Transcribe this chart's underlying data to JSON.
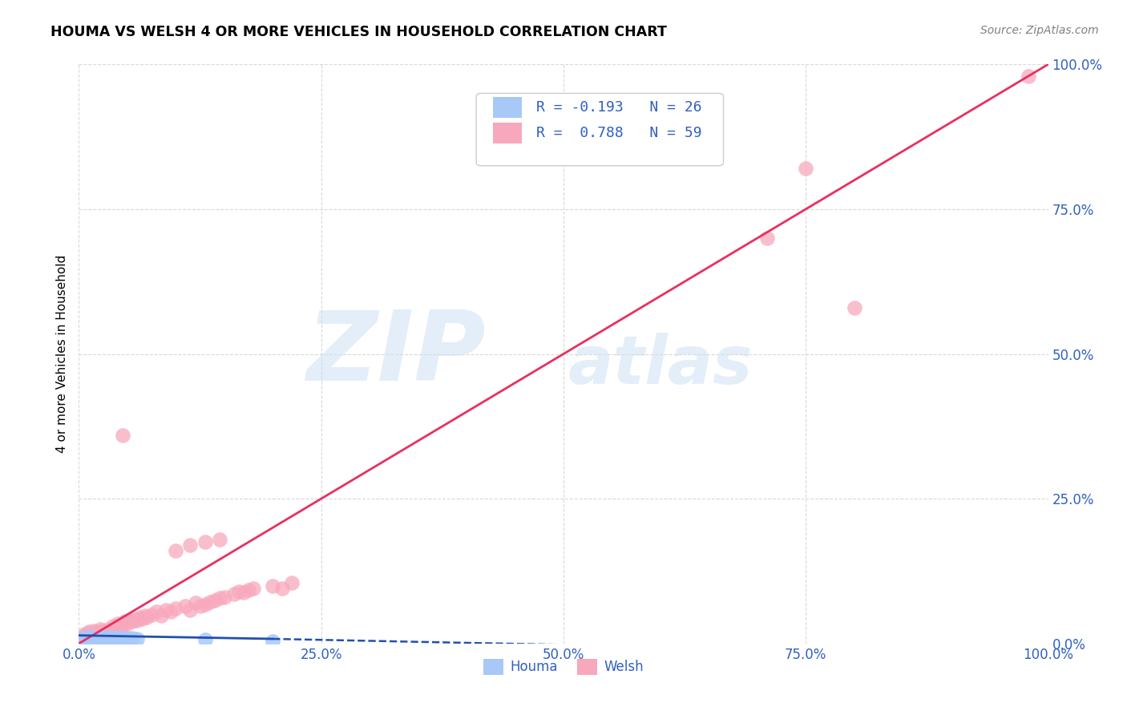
{
  "title": "HOUMA VS WELSH 4 OR MORE VEHICLES IN HOUSEHOLD CORRELATION CHART",
  "source": "Source: ZipAtlas.com",
  "ylabel": "4 or more Vehicles in Household",
  "watermark_zip": "ZIP",
  "watermark_atlas": "atlas",
  "xlim": [
    0.0,
    1.0
  ],
  "ylim": [
    0.0,
    1.0
  ],
  "x_ticks": [
    0.0,
    0.25,
    0.5,
    0.75,
    1.0
  ],
  "y_ticks": [
    0.0,
    0.25,
    0.5,
    0.75,
    1.0
  ],
  "x_tick_labels": [
    "0.0%",
    "25.0%",
    "50.0%",
    "75.0%",
    "100.0%"
  ],
  "y_tick_labels": [
    "0.0%",
    "25.0%",
    "50.0%",
    "75.0%",
    "100.0%"
  ],
  "houma_color": "#a8c8f8",
  "welsh_color": "#f8a8bc",
  "houma_line_color": "#2050b0",
  "welsh_line_color": "#e83060",
  "houma_R": -0.193,
  "houma_N": 26,
  "welsh_R": 0.788,
  "welsh_N": 59,
  "legend_label_houma": "Houma",
  "legend_label_welsh": "Welsh",
  "legend_text_color": "#3060c0",
  "axis_tick_color": "#3060c0",
  "grid_color": "#d0d0d0",
  "houma_x": [
    0.005,
    0.008,
    0.01,
    0.012,
    0.014,
    0.016,
    0.018,
    0.02,
    0.022,
    0.024,
    0.026,
    0.028,
    0.03,
    0.032,
    0.034,
    0.036,
    0.038,
    0.04,
    0.042,
    0.044,
    0.046,
    0.05,
    0.055,
    0.06,
    0.13,
    0.2
  ],
  "houma_y": [
    0.01,
    0.008,
    0.012,
    0.008,
    0.01,
    0.009,
    0.01,
    0.01,
    0.009,
    0.011,
    0.01,
    0.009,
    0.01,
    0.011,
    0.01,
    0.009,
    0.01,
    0.01,
    0.009,
    0.01,
    0.009,
    0.01,
    0.009,
    0.008,
    0.006,
    0.004
  ],
  "welsh_x": [
    0.005,
    0.008,
    0.01,
    0.012,
    0.015,
    0.017,
    0.02,
    0.022,
    0.025,
    0.027,
    0.03,
    0.032,
    0.035,
    0.038,
    0.04,
    0.043,
    0.045,
    0.048,
    0.05,
    0.053,
    0.055,
    0.058,
    0.06,
    0.063,
    0.065,
    0.068,
    0.07,
    0.075,
    0.08,
    0.085,
    0.09,
    0.095,
    0.1,
    0.11,
    0.115,
    0.12,
    0.125,
    0.13,
    0.135,
    0.14,
    0.145,
    0.15,
    0.16,
    0.165,
    0.17,
    0.175,
    0.18,
    0.2,
    0.21,
    0.22,
    0.1,
    0.115,
    0.13,
    0.145,
    0.045,
    0.71,
    0.75,
    0.8,
    0.98
  ],
  "welsh_y": [
    0.015,
    0.018,
    0.02,
    0.015,
    0.022,
    0.018,
    0.02,
    0.025,
    0.022,
    0.018,
    0.025,
    0.02,
    0.03,
    0.025,
    0.035,
    0.028,
    0.032,
    0.038,
    0.035,
    0.04,
    0.038,
    0.042,
    0.04,
    0.045,
    0.042,
    0.048,
    0.045,
    0.05,
    0.055,
    0.048,
    0.058,
    0.055,
    0.06,
    0.065,
    0.058,
    0.07,
    0.065,
    0.068,
    0.072,
    0.075,
    0.078,
    0.08,
    0.085,
    0.09,
    0.088,
    0.092,
    0.095,
    0.1,
    0.095,
    0.105,
    0.16,
    0.17,
    0.175,
    0.18,
    0.36,
    0.7,
    0.82,
    0.58,
    0.98
  ],
  "welsh_line_x0": 0.0,
  "welsh_line_y0": 0.0,
  "welsh_line_x1": 1.0,
  "welsh_line_y1": 1.0,
  "houma_line_x0": 0.0,
  "houma_line_y0": 0.014,
  "houma_line_x1_solid": 0.2,
  "houma_line_y1_solid": 0.008,
  "houma_line_x1_dash": 1.02,
  "houma_line_y1_dash": -0.02
}
